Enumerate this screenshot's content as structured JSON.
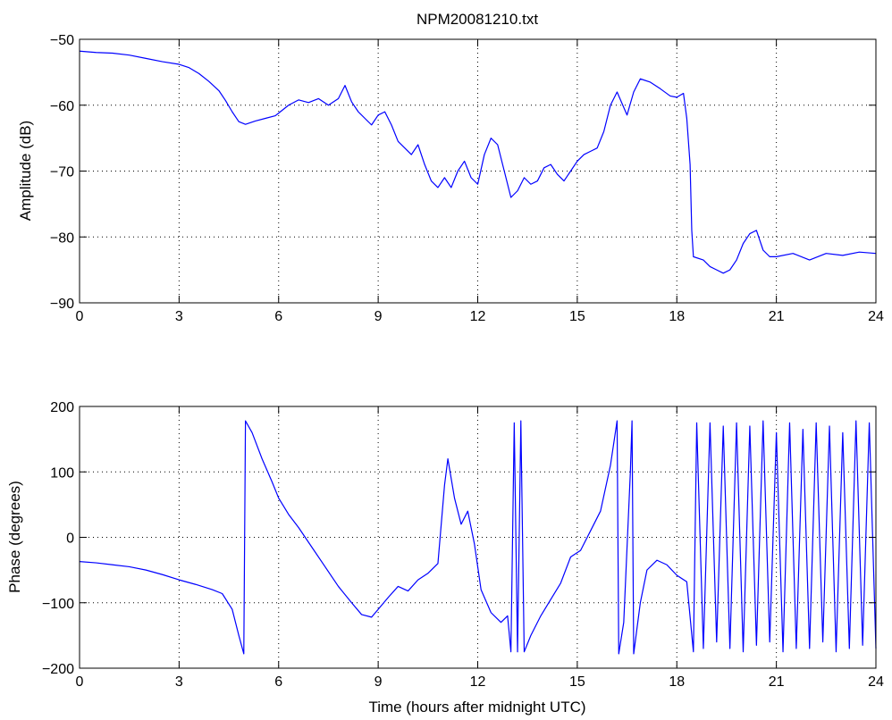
{
  "figure": {
    "title": "NPM20081210.txt",
    "line_color": "#0000ff",
    "axes_color": "#000000",
    "grid_color": "#000000"
  },
  "chart_data": [
    {
      "type": "line",
      "title": "NPM20081210.txt",
      "xlabel": "",
      "ylabel": "Amplitude (dB)",
      "xlim": [
        0,
        24
      ],
      "ylim": [
        -90,
        -50
      ],
      "xticks": [
        0,
        3,
        6,
        9,
        12,
        15,
        18,
        21,
        24
      ],
      "xtick_labels": [
        "0",
        "3",
        "6",
        "9",
        "12",
        "15",
        "18",
        "21",
        "24"
      ],
      "yticks": [
        -90,
        -80,
        -70,
        -60,
        -50
      ],
      "ytick_labels": [
        "−90",
        "−80",
        "−70",
        "−60",
        "−50"
      ],
      "grid": true,
      "series": [
        {
          "values": [
            [
              0,
              -51.8
            ],
            [
              0.5,
              -52.0
            ],
            [
              1,
              -52.1
            ],
            [
              1.5,
              -52.4
            ],
            [
              2,
              -52.9
            ],
            [
              2.5,
              -53.4
            ],
            [
              3,
              -53.8
            ],
            [
              3.3,
              -54.3
            ],
            [
              3.6,
              -55.2
            ],
            [
              3.9,
              -56.4
            ],
            [
              4.2,
              -57.8
            ],
            [
              4.4,
              -59.3
            ],
            [
              4.6,
              -61.0
            ],
            [
              4.8,
              -62.5
            ],
            [
              5.0,
              -62.9
            ],
            [
              5.3,
              -62.4
            ],
            [
              5.6,
              -62.0
            ],
            [
              5.9,
              -61.6
            ],
            [
              6.0,
              -61.2
            ],
            [
              6.3,
              -60.0
            ],
            [
              6.6,
              -59.2
            ],
            [
              6.9,
              -59.6
            ],
            [
              7.2,
              -59.0
            ],
            [
              7.5,
              -60.0
            ],
            [
              7.8,
              -59.0
            ],
            [
              8.0,
              -57.0
            ],
            [
              8.2,
              -59.5
            ],
            [
              8.4,
              -61.0
            ],
            [
              8.6,
              -62.0
            ],
            [
              8.8,
              -63.0
            ],
            [
              9.0,
              -61.5
            ],
            [
              9.2,
              -61.0
            ],
            [
              9.4,
              -63.0
            ],
            [
              9.6,
              -65.5
            ],
            [
              9.8,
              -66.5
            ],
            [
              10.0,
              -67.5
            ],
            [
              10.2,
              -66.0
            ],
            [
              10.4,
              -69.0
            ],
            [
              10.6,
              -71.5
            ],
            [
              10.8,
              -72.5
            ],
            [
              11.0,
              -71.0
            ],
            [
              11.2,
              -72.5
            ],
            [
              11.4,
              -70.0
            ],
            [
              11.6,
              -68.5
            ],
            [
              11.8,
              -71.0
            ],
            [
              12.0,
              -72.0
            ],
            [
              12.2,
              -67.5
            ],
            [
              12.4,
              -65.0
            ],
            [
              12.6,
              -66.0
            ],
            [
              12.8,
              -70.0
            ],
            [
              13.0,
              -74.0
            ],
            [
              13.2,
              -73.0
            ],
            [
              13.4,
              -71.0
            ],
            [
              13.6,
              -72.0
            ],
            [
              13.8,
              -71.5
            ],
            [
              14.0,
              -69.5
            ],
            [
              14.2,
              -69.0
            ],
            [
              14.4,
              -70.5
            ],
            [
              14.6,
              -71.5
            ],
            [
              14.8,
              -70.0
            ],
            [
              15.0,
              -68.5
            ],
            [
              15.2,
              -67.5
            ],
            [
              15.4,
              -67.0
            ],
            [
              15.6,
              -66.5
            ],
            [
              15.8,
              -64.0
            ],
            [
              16.0,
              -60.0
            ],
            [
              16.2,
              -58.0
            ],
            [
              16.5,
              -61.5
            ],
            [
              16.7,
              -58.0
            ],
            [
              16.9,
              -56.0
            ],
            [
              17.2,
              -56.5
            ],
            [
              17.5,
              -57.5
            ],
            [
              17.8,
              -58.6
            ],
            [
              18.0,
              -58.8
            ],
            [
              18.2,
              -58.2
            ],
            [
              18.3,
              -62.0
            ],
            [
              18.4,
              -69.0
            ],
            [
              18.45,
              -79.0
            ],
            [
              18.5,
              -83.0
            ],
            [
              18.8,
              -83.5
            ],
            [
              19.0,
              -84.5
            ],
            [
              19.2,
              -85.0
            ],
            [
              19.4,
              -85.5
            ],
            [
              19.6,
              -85.0
            ],
            [
              19.8,
              -83.5
            ],
            [
              20.0,
              -81.0
            ],
            [
              20.2,
              -79.5
            ],
            [
              20.4,
              -79.0
            ],
            [
              20.6,
              -82.0
            ],
            [
              20.8,
              -83.0
            ],
            [
              21.0,
              -83.0
            ],
            [
              21.5,
              -82.5
            ],
            [
              22.0,
              -83.5
            ],
            [
              22.5,
              -82.5
            ],
            [
              23.0,
              -82.8
            ],
            [
              23.5,
              -82.3
            ],
            [
              24.0,
              -82.5
            ]
          ]
        }
      ]
    },
    {
      "type": "line",
      "title": "",
      "xlabel": "Time (hours after midnight UTC)",
      "ylabel": "Phase (degrees)",
      "xlim": [
        0,
        24
      ],
      "ylim": [
        -200,
        200
      ],
      "xticks": [
        0,
        3,
        6,
        9,
        12,
        15,
        18,
        21,
        24
      ],
      "xtick_labels": [
        "0",
        "3",
        "6",
        "9",
        "12",
        "15",
        "18",
        "21",
        "24"
      ],
      "yticks": [
        -200,
        -100,
        0,
        100,
        200
      ],
      "ytick_labels": [
        "−200",
        "−100",
        "0",
        "100",
        "200"
      ],
      "grid": true,
      "series": [
        {
          "values": [
            [
              0,
              -37
            ],
            [
              0.5,
              -39
            ],
            [
              1,
              -42
            ],
            [
              1.5,
              -45
            ],
            [
              2,
              -50
            ],
            [
              2.5,
              -57
            ],
            [
              3,
              -65
            ],
            [
              3.5,
              -72
            ],
            [
              4,
              -80
            ],
            [
              4.3,
              -86
            ],
            [
              4.6,
              -110
            ],
            [
              4.8,
              -150
            ],
            [
              4.95,
              -178
            ],
            [
              5.0,
              178
            ],
            [
              5.2,
              160
            ],
            [
              5.5,
              120
            ],
            [
              5.8,
              85
            ],
            [
              6.0,
              60
            ],
            [
              6.3,
              35
            ],
            [
              6.6,
              15
            ],
            [
              7.0,
              -15
            ],
            [
              7.4,
              -45
            ],
            [
              7.8,
              -75
            ],
            [
              8.2,
              -100
            ],
            [
              8.5,
              -118
            ],
            [
              8.8,
              -122
            ],
            [
              9.0,
              -110
            ],
            [
              9.3,
              -92
            ],
            [
              9.6,
              -75
            ],
            [
              9.9,
              -82
            ],
            [
              10.2,
              -65
            ],
            [
              10.5,
              -55
            ],
            [
              10.8,
              -40
            ],
            [
              11.0,
              80
            ],
            [
              11.1,
              120
            ],
            [
              11.3,
              60
            ],
            [
              11.5,
              20
            ],
            [
              11.7,
              40
            ],
            [
              11.9,
              -10
            ],
            [
              12.1,
              -80
            ],
            [
              12.4,
              -115
            ],
            [
              12.7,
              -130
            ],
            [
              12.9,
              -120
            ],
            [
              13.0,
              -175
            ],
            [
              13.1,
              175
            ],
            [
              13.2,
              -175
            ],
            [
              13.3,
              178
            ],
            [
              13.4,
              -175
            ],
            [
              13.6,
              -150
            ],
            [
              13.9,
              -120
            ],
            [
              14.2,
              -95
            ],
            [
              14.5,
              -70
            ],
            [
              14.8,
              -30
            ],
            [
              15.1,
              -20
            ],
            [
              15.4,
              10
            ],
            [
              15.7,
              40
            ],
            [
              16.0,
              110
            ],
            [
              16.2,
              178
            ],
            [
              16.25,
              -178
            ],
            [
              16.4,
              -130
            ],
            [
              16.6,
              100
            ],
            [
              16.65,
              178
            ],
            [
              16.7,
              -178
            ],
            [
              16.9,
              -100
            ],
            [
              17.1,
              -50
            ],
            [
              17.4,
              -35
            ],
            [
              17.7,
              -42
            ],
            [
              18.0,
              -58
            ],
            [
              18.3,
              -68
            ],
            [
              18.5,
              -175
            ],
            [
              18.6,
              175
            ],
            [
              18.8,
              -170
            ],
            [
              19.0,
              175
            ],
            [
              19.2,
              -160
            ],
            [
              19.4,
              170
            ],
            [
              19.6,
              -170
            ],
            [
              19.8,
              175
            ],
            [
              20.0,
              -175
            ],
            [
              20.2,
              170
            ],
            [
              20.4,
              -165
            ],
            [
              20.6,
              178
            ],
            [
              20.8,
              -160
            ],
            [
              21.0,
              160
            ],
            [
              21.2,
              -175
            ],
            [
              21.4,
              175
            ],
            [
              21.6,
              -170
            ],
            [
              21.8,
              165
            ],
            [
              22.0,
              -170
            ],
            [
              22.2,
              175
            ],
            [
              22.4,
              -160
            ],
            [
              22.6,
              170
            ],
            [
              22.8,
              -175
            ],
            [
              23.0,
              160
            ],
            [
              23.2,
              -170
            ],
            [
              23.4,
              178
            ],
            [
              23.6,
              -165
            ],
            [
              23.8,
              175
            ],
            [
              24.0,
              -170
            ]
          ]
        }
      ]
    }
  ]
}
